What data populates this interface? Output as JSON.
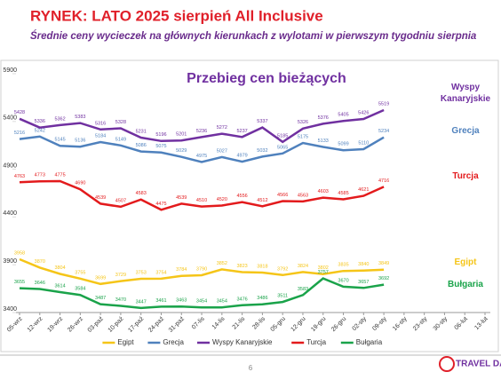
{
  "header": {
    "title": "RYNEK: LATO 2025 sierpień All Inclusive",
    "subtitle": "Średnie ceny wycieczek na głównych kierunkach z wylotami w pierwszym tygodniu sierpnia"
  },
  "chart_data": {
    "type": "line",
    "title": "Przebieg cen bieżących",
    "categories": [
      "05-wrz",
      "12-wrz",
      "19-wrz",
      "26-wrz",
      "03-paź",
      "10-paź",
      "17-paź",
      "24-paź",
      "31-paź",
      "07-lis",
      "14-lis",
      "21-lis",
      "28-lis",
      "05-gru",
      "12-gru",
      "19-gru",
      "26-gru",
      "02-sty",
      "09-sty",
      "16-sty",
      "23-sty",
      "30-sty",
      "06-lut",
      "13-lut"
    ],
    "series": [
      {
        "name": "Egipt",
        "color": "#f5c518",
        "values": [
          3958,
          3870,
          3804,
          3755,
          3699,
          3729,
          3753,
          3754,
          3784,
          3790,
          3852,
          3823,
          3818,
          3792,
          3824,
          3802,
          3835,
          3840,
          3849,
          null,
          null,
          null,
          null,
          null
        ]
      },
      {
        "name": "Grecja",
        "color": "#4f81bd",
        "values": [
          5216,
          5242,
          5145,
          5136,
          5184,
          5149,
          5086,
          5075,
          5029,
          4975,
          5027,
          4979,
          5032,
          5065,
          5175,
          5133,
          5099,
          5110,
          5234,
          null,
          null,
          null,
          null,
          null
        ]
      },
      {
        "name": "Wyspy Kanaryjskie",
        "color": "#7030a0",
        "values": [
          5428,
          5336,
          5362,
          5383,
          5316,
          5328,
          5231,
          5196,
          5201,
          5236,
          5272,
          5237,
          5337,
          5185,
          5326,
          5376,
          5405,
          5426,
          5519,
          null,
          null,
          null,
          null,
          null
        ]
      },
      {
        "name": "Turcja",
        "color": "#e31a1c",
        "values": [
          4763,
          4773,
          4775,
          4690,
          4539,
          4507,
          4583,
          4475,
          4539,
          4510,
          4520,
          4556,
          4512,
          4566,
          4563,
          4603,
          4585,
          4621,
          4716,
          null,
          null,
          null,
          null,
          null
        ]
      },
      {
        "name": "Bułgaria",
        "color": "#1aa34a",
        "values": [
          3655,
          3646,
          3614,
          3584,
          3487,
          3470,
          3447,
          3461,
          3463,
          3454,
          3454,
          3476,
          3486,
          3511,
          3583,
          3757,
          3670,
          3657,
          3692,
          null,
          null,
          null,
          null,
          null
        ]
      }
    ],
    "ylim": [
      3400,
      5900
    ],
    "yticks": [
      3400,
      3900,
      4400,
      4900,
      5400,
      5900
    ],
    "grid": false,
    "legend": "bottom"
  },
  "footer": {
    "page": "6",
    "logo": "TRAVEL DATA"
  }
}
